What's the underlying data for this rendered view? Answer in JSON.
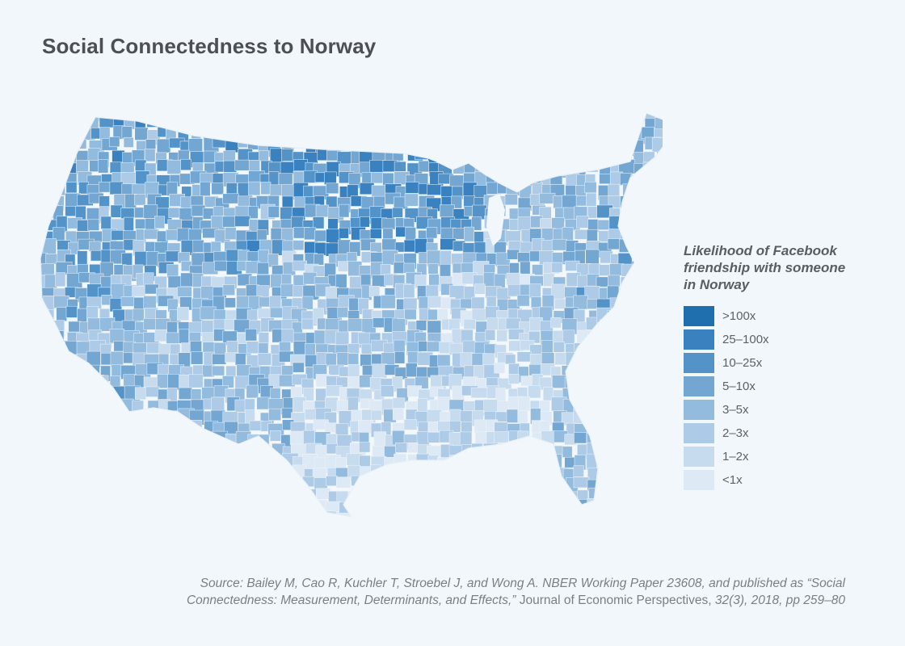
{
  "title": "Social Connectedness to Norway",
  "legend": {
    "title_lines": [
      "Likelihood of Facebook",
      "friendship with someone",
      "in Norway"
    ],
    "items": [
      {
        "label": ">100x",
        "color": "#1f6fae"
      },
      {
        "label": "25–100x",
        "color": "#3a82bf"
      },
      {
        "label": "10–25x",
        "color": "#5393c8"
      },
      {
        "label": "5–10x",
        "color": "#73a7d2"
      },
      {
        "label": "3–5x",
        "color": "#93bbdd"
      },
      {
        "label": "2–3x",
        "color": "#adcbe6"
      },
      {
        "label": "1–2x",
        "color": "#c6dbee"
      },
      {
        "label": "<1x",
        "color": "#dde9f4"
      }
    ]
  },
  "source": {
    "line1": "Source: Bailey M, Cao R, Kuchler T, Stroebel J, and Wong A. NBER Working Paper 23608, and published as “Social",
    "line2_part1": "Connectedness: Measurement, Determinants, and Effects,” ",
    "line2_part2": "Journal of Economic Perspectives,",
    "line2_part3": " 32(3), 2018, pp 259–80"
  }
}
